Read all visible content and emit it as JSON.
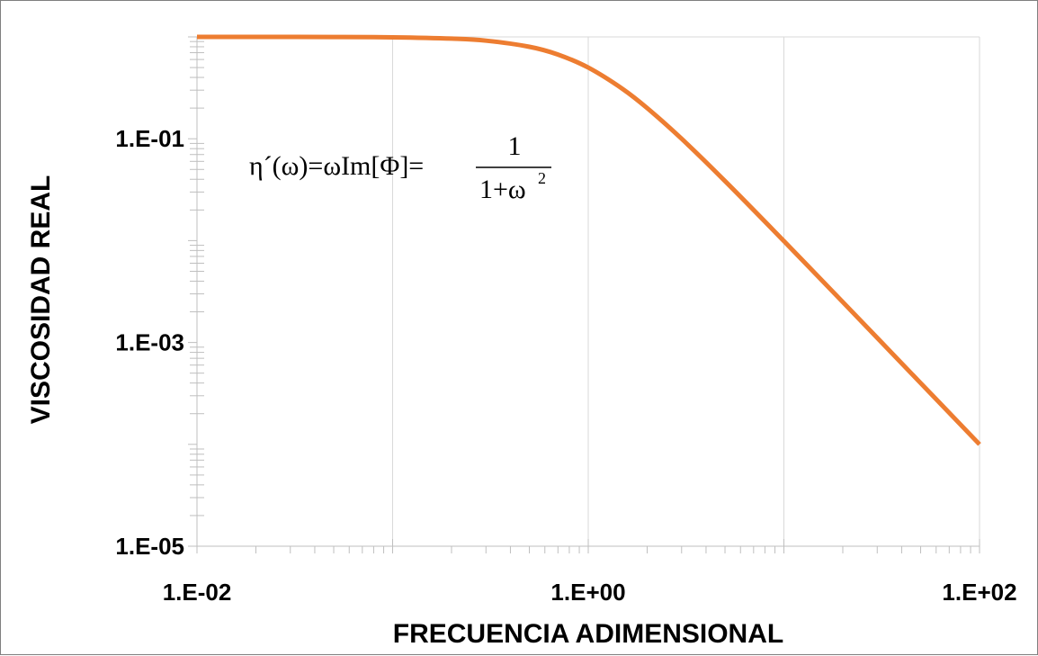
{
  "chart_data": {
    "type": "line",
    "xlabel": "FRECUENCIA ADIMENSIONAL",
    "ylabel": "VISCOSIDAD REAL",
    "x_scale": "log",
    "y_scale": "log",
    "xlim": [
      0.01,
      100
    ],
    "ylim": [
      1e-05,
      1
    ],
    "x_ticks": [
      "1.E-02",
      "1.E+00",
      "1.E+02"
    ],
    "y_ticks": [
      "1.E-05",
      "1.E-03",
      "1.E-01"
    ],
    "grid": "vertical major only",
    "legend": "none",
    "series": [
      {
        "color": "#ED7D31",
        "x": [
          0.01,
          0.02,
          0.05,
          0.1,
          0.2,
          0.3,
          0.5,
          0.7,
          1,
          1.5,
          2,
          3,
          5,
          10,
          20,
          50,
          100
        ],
        "values": [
          0.9999,
          0.9996,
          0.9975,
          0.9901,
          0.9615,
          0.9174,
          0.8,
          0.6711,
          0.5,
          0.3077,
          0.2,
          0.1,
          0.03846,
          0.0099,
          0.002494,
          0.0003998,
          0.0001
        ]
      }
    ],
    "annotation": {
      "lhs": "η´(ω)=ωIm[Φ]=",
      "numerator": "1",
      "denominator": "1+ω",
      "exponent": "2"
    }
  }
}
